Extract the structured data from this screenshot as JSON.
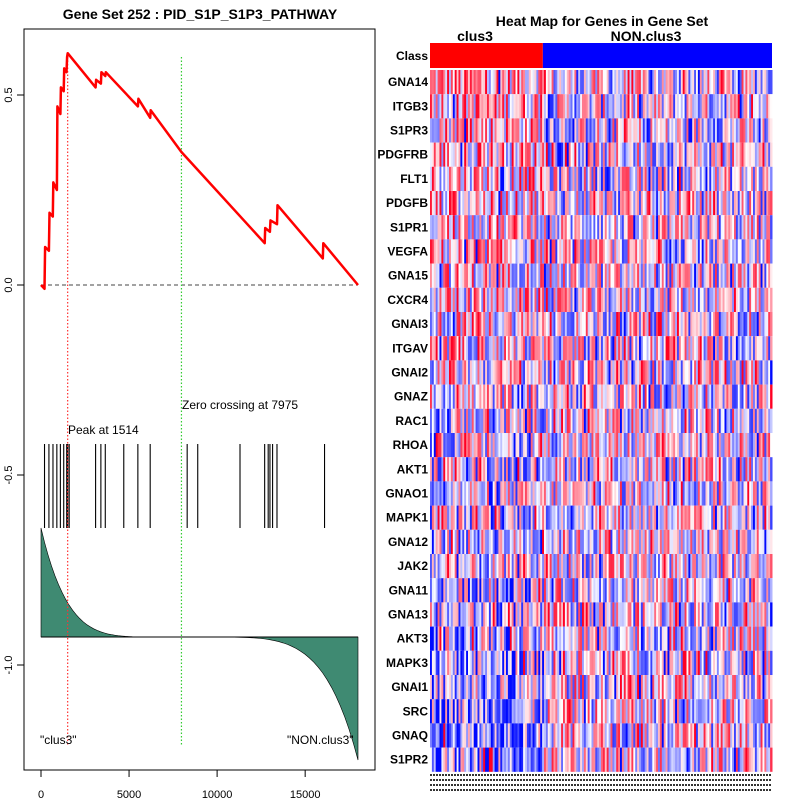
{
  "gsea": {
    "title": "Gene Set  252 : PID_S1P_S1P3_PATHWAY",
    "peak_label": "Peak at 1514",
    "zero_label": "Zero crossing at 7975",
    "left_class_label": "\"clus3\"",
    "right_class_label": "\"NON.clus3\"",
    "peak_index": 1514,
    "zero_crossing": 7975,
    "colors": {
      "es_line": "#ff0000",
      "peak_line": "#ff3333",
      "zero_line": "#33cc33",
      "metric_fill": "#3f8a72",
      "hit": "#000000"
    }
  },
  "chart_data": {
    "type": "line",
    "title": "Gene Set  252 : PID_S1P_S1P3_PATHWAY",
    "xlabel": "",
    "ylabel": "",
    "xlim": [
      0,
      18000
    ],
    "ylim": [
      -1.27,
      0.68
    ],
    "x_ticks": [
      0,
      5000,
      10000,
      15000
    ],
    "x_tick_labels": [
      "0",
      "5000",
      "10000",
      "15000"
    ],
    "y_ticks": [
      0.5,
      0.0,
      -0.5,
      -1.0
    ],
    "y_tick_labels": [
      "0.5",
      "0.0",
      "-0.5",
      "-1.0"
    ],
    "series": [
      {
        "name": "Running Enrichment Score",
        "x": [
          0,
          200,
          230,
          450,
          480,
          670,
          700,
          900,
          930,
          1100,
          1130,
          1290,
          1320,
          1450,
          1480,
          1514,
          3100,
          3130,
          3400,
          3430,
          3650,
          3680,
          5500,
          5530,
          6200,
          6230,
          7975,
          12700,
          12730,
          13000,
          13030,
          13400,
          13430,
          16000,
          16030,
          18000
        ],
        "values": [
          0.0,
          -0.01,
          0.1,
          0.09,
          0.19,
          0.18,
          0.27,
          0.25,
          0.47,
          0.45,
          0.52,
          0.51,
          0.57,
          0.56,
          0.6,
          0.61,
          0.52,
          0.54,
          0.53,
          0.56,
          0.55,
          0.56,
          0.47,
          0.49,
          0.44,
          0.46,
          0.35,
          0.11,
          0.15,
          0.14,
          0.17,
          0.16,
          0.21,
          0.07,
          0.11,
          0.0
        ]
      }
    ],
    "hits": [
      200,
      450,
      680,
      900,
      1100,
      1290,
      1460,
      1514,
      1600,
      3100,
      3400,
      3650,
      4700,
      5500,
      6200,
      8300,
      8900,
      11300,
      12700,
      12900,
      13000,
      13150,
      13400,
      16100
    ],
    "ranked_metric": {
      "start": 0.3,
      "end": -0.65,
      "zero_at": 7975
    },
    "heatmap": {
      "title": "Heat Map for Genes in Gene Set",
      "class_row_label": "Class",
      "classes": [
        "clus3",
        "NON.clus3"
      ],
      "class_split_fraction": 0.33,
      "class_colors": [
        "#ff0000",
        "#0000ff"
      ],
      "genes": [
        "GNA14",
        "ITGB3",
        "S1PR3",
        "PDGFRB",
        "FLT1",
        "PDGFB",
        "S1PR1",
        "VEGFA",
        "GNA15",
        "CXCR4",
        "GNAI3",
        "ITGAV",
        "GNAI2",
        "GNAZ",
        "RAC1",
        "RHOA",
        "AKT1",
        "GNAO1",
        "MAPK1",
        "GNA12",
        "JAK2",
        "GNA11",
        "GNA13",
        "AKT3",
        "MAPK3",
        "GNAI1",
        "SRC",
        "GNAQ",
        "S1PR2"
      ],
      "n_samples": 180
    }
  }
}
